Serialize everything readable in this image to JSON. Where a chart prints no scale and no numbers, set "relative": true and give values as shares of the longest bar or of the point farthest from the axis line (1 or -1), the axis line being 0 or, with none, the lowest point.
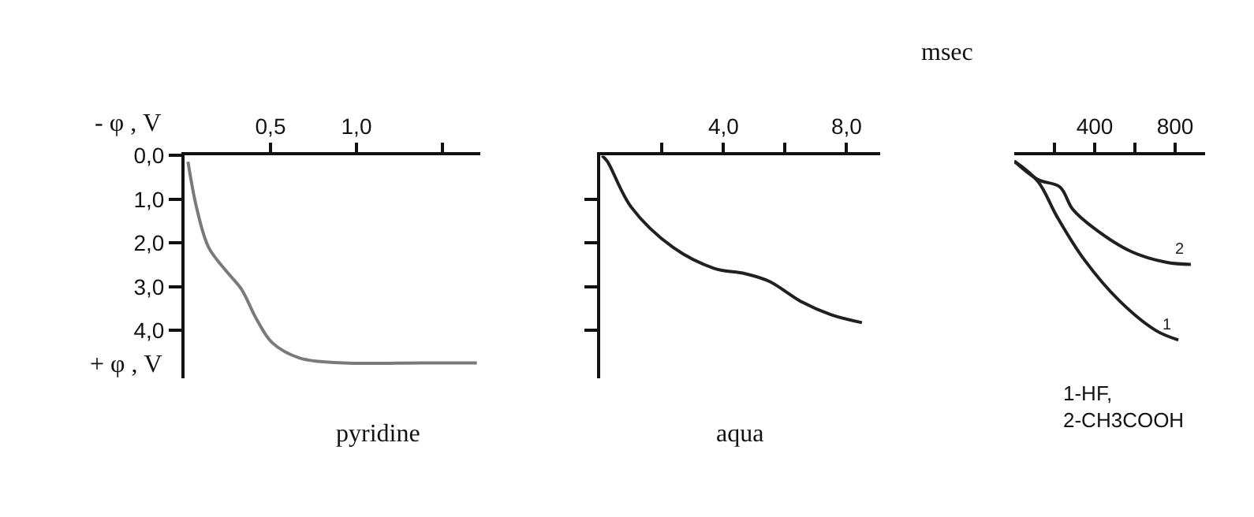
{
  "chart_data": [
    {
      "type": "line",
      "xlabel": "pyridine",
      "ylabel": "- φ , V",
      "annotations": [
        "+ φ , V"
      ],
      "xlim": [
        0,
        1.72
      ],
      "ylim": [
        5.1,
        0
      ],
      "xticks": [
        {
          "value": 0.5,
          "label": "0,5"
        },
        {
          "value": 1.0,
          "label": "1,0"
        },
        {
          "value": 1.5,
          "label": null
        }
      ],
      "yticks": [
        {
          "value": 0,
          "label": "0,0"
        },
        {
          "value": 1,
          "label": "1,0"
        },
        {
          "value": 2,
          "label": "2,0"
        },
        {
          "value": 3,
          "label": "3,0"
        },
        {
          "value": 4,
          "label": "4,0"
        }
      ],
      "marker": "none",
      "line_style": "solid",
      "series": [
        {
          "color": "#7a7a7a",
          "x": [
            0.02,
            0.07,
            0.14,
            0.24,
            0.33,
            0.42,
            0.51,
            0.67,
            0.92,
            1.38,
            1.7
          ],
          "values": [
            0.14,
            1.19,
            2.1,
            2.63,
            3.05,
            3.75,
            4.28,
            4.63,
            4.74,
            4.74,
            4.74
          ]
        }
      ]
    },
    {
      "type": "line",
      "xlabel": "aqua",
      "xlim": [
        0,
        9.1
      ],
      "ylim": [
        5.1,
        0
      ],
      "tick_labels": "x",
      "xticks": [
        {
          "value": 2,
          "label": null
        },
        {
          "value": 4,
          "label": "4,0"
        },
        {
          "value": 6,
          "label": null
        },
        {
          "value": 8,
          "label": "8,0"
        }
      ],
      "yticks": [
        {
          "value": 1,
          "label": null
        },
        {
          "value": 2,
          "label": null
        },
        {
          "value": 3,
          "label": null
        },
        {
          "value": 4,
          "label": null
        }
      ],
      "marker": "none",
      "line_style": "solid",
      "series": [
        {
          "color": "#202020",
          "x": [
            0.05,
            0.22,
            1.0,
            2.36,
            3.7,
            4.7,
            5.5,
            6.5,
            7.5,
            8.5
          ],
          "values": [
            0.0,
            0.13,
            1.18,
            2.1,
            2.58,
            2.7,
            2.88,
            3.33,
            3.64,
            3.82
          ]
        }
      ]
    },
    {
      "type": "line",
      "annotations": [
        "msec",
        "1-HF,\n2-CH3COOH"
      ],
      "xlim": [
        0,
        950
      ],
      "relative": true,
      "tick_labels": "x",
      "xticks": [
        {
          "value": 200,
          "label": null
        },
        400,
        {
          "value": 600,
          "label": null
        },
        800
      ],
      "marker": "none",
      "line_style": "solid",
      "series": [
        {
          "name": "1",
          "color": "#202020",
          "x": [
            0,
            118,
            212,
            345,
            525,
            706,
            816
          ],
          "values": [
            -0.03,
            -0.14,
            -0.33,
            -0.56,
            -0.79,
            -0.95,
            -1
          ]
        },
        {
          "name": "2",
          "color": "#202020",
          "x": [
            0,
            118,
            227,
            290,
            392,
            580,
            760,
            878
          ],
          "values": [
            -0.03,
            -0.13,
            -0.17,
            -0.29,
            -0.39,
            -0.52,
            -0.58,
            -0.59
          ]
        }
      ]
    }
  ]
}
